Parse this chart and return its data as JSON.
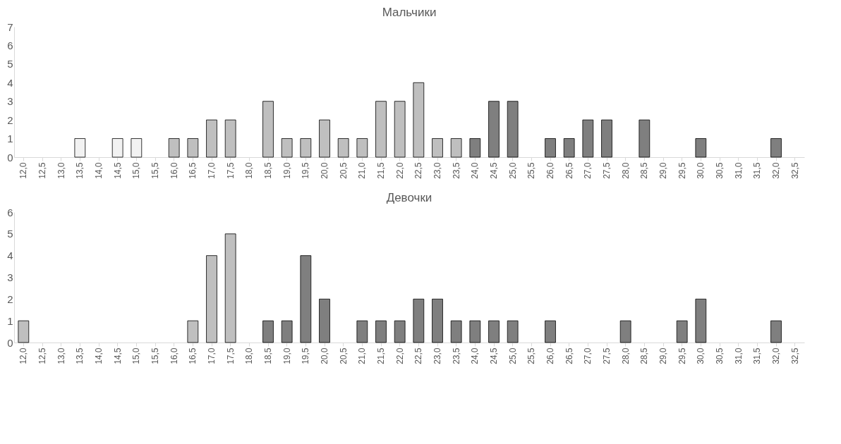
{
  "chart_data": [
    {
      "type": "bar",
      "title": "Мальчики",
      "categories": [
        "12,0",
        "12,5",
        "13,0",
        "13,5",
        "14,0",
        "14,5",
        "15,0",
        "15,5",
        "16,0",
        "16,5",
        "17,0",
        "17,5",
        "18,0",
        "18,5",
        "19,0",
        "19,5",
        "20,0",
        "20,5",
        "21,0",
        "21,5",
        "22,0",
        "22,5",
        "23,0",
        "23,5",
        "24,0",
        "24,5",
        "25,0",
        "25,5",
        "26,0",
        "26,5",
        "27,0",
        "27,5",
        "28,0",
        "28,5",
        "29,0",
        "29,5",
        "30,0",
        "30,5",
        "31,0",
        "31,5",
        "32,0",
        "32,5"
      ],
      "values": [
        0,
        0,
        0,
        1,
        0,
        1,
        1,
        0,
        1,
        1,
        2,
        2,
        0,
        3,
        1,
        1,
        2,
        1,
        1,
        3,
        3,
        4,
        1,
        1,
        1,
        3,
        3,
        0,
        1,
        1,
        2,
        2,
        0,
        2,
        0,
        0,
        1,
        0,
        0,
        0,
        1,
        0
      ],
      "colors": [
        "#f2f2f2",
        "#f2f2f2",
        "#f2f2f2",
        "#f2f2f2",
        "#f2f2f2",
        "#f2f2f2",
        "#f2f2f2",
        "#f2f2f2",
        "#bfbfbf",
        "#bfbfbf",
        "#bfbfbf",
        "#bfbfbf",
        "#bfbfbf",
        "#bfbfbf",
        "#bfbfbf",
        "#bfbfbf",
        "#bfbfbf",
        "#bfbfbf",
        "#bfbfbf",
        "#bfbfbf",
        "#bfbfbf",
        "#bfbfbf",
        "#bfbfbf",
        "#bfbfbf",
        "#7f7f7f",
        "#7f7f7f",
        "#7f7f7f",
        "#7f7f7f",
        "#7f7f7f",
        "#7f7f7f",
        "#7f7f7f",
        "#7f7f7f",
        "#7f7f7f",
        "#7f7f7f",
        "#7f7f7f",
        "#7f7f7f",
        "#7f7f7f",
        "#7f7f7f",
        "#7f7f7f",
        "#7f7f7f",
        "#7f7f7f",
        "#7f7f7f"
      ],
      "ylim": [
        0,
        7
      ],
      "yticks": [
        0,
        1,
        2,
        3,
        4,
        5,
        6,
        7
      ]
    },
    {
      "type": "bar",
      "title": "Девочки",
      "categories": [
        "12,0",
        "12,5",
        "13,0",
        "13,5",
        "14,0",
        "14,5",
        "15,0",
        "15,5",
        "16,0",
        "16,5",
        "17,0",
        "17,5",
        "18,0",
        "18,5",
        "19,0",
        "19,5",
        "20,0",
        "20,5",
        "21,0",
        "21,5",
        "22,0",
        "22,5",
        "23,0",
        "23,5",
        "24,0",
        "24,5",
        "25,0",
        "25,5",
        "26,0",
        "26,5",
        "27,0",
        "27,5",
        "28,0",
        "28,5",
        "29,0",
        "29,5",
        "30,0",
        "30,5",
        "31,0",
        "31,5",
        "32,0",
        "32,5"
      ],
      "values": [
        1,
        0,
        0,
        0,
        0,
        0,
        0,
        0,
        0,
        1,
        4,
        5,
        0,
        1,
        1,
        4,
        2,
        0,
        1,
        1,
        1,
        2,
        2,
        1,
        1,
        1,
        1,
        0,
        1,
        0,
        0,
        0,
        1,
        0,
        0,
        1,
        2,
        0,
        0,
        0,
        1,
        0
      ],
      "colors": [
        "#bfbfbf",
        "#bfbfbf",
        "#bfbfbf",
        "#bfbfbf",
        "#bfbfbf",
        "#bfbfbf",
        "#bfbfbf",
        "#bfbfbf",
        "#bfbfbf",
        "#bfbfbf",
        "#bfbfbf",
        "#bfbfbf",
        "#bfbfbf",
        "#7f7f7f",
        "#7f7f7f",
        "#7f7f7f",
        "#7f7f7f",
        "#7f7f7f",
        "#7f7f7f",
        "#7f7f7f",
        "#7f7f7f",
        "#7f7f7f",
        "#7f7f7f",
        "#7f7f7f",
        "#7f7f7f",
        "#7f7f7f",
        "#7f7f7f",
        "#7f7f7f",
        "#7f7f7f",
        "#7f7f7f",
        "#7f7f7f",
        "#7f7f7f",
        "#7f7f7f",
        "#7f7f7f",
        "#7f7f7f",
        "#7f7f7f",
        "#7f7f7f",
        "#7f7f7f",
        "#7f7f7f",
        "#7f7f7f",
        "#7f7f7f",
        "#7f7f7f"
      ],
      "ylim": [
        0,
        6
      ],
      "yticks": [
        0,
        1,
        2,
        3,
        4,
        5,
        6
      ]
    }
  ]
}
